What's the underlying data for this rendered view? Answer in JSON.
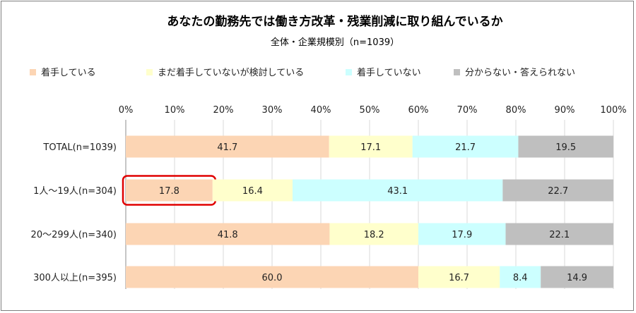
{
  "chart_data": {
    "type": "bar",
    "orientation": "horizontal",
    "stacked": true,
    "title": "あなたの勤務先では働き方改革・残業削減に取り組んでいるか",
    "subtitle": "全体・企業規模別（n=1039）",
    "categories": [
      "TOTAL(n=1039)",
      "1人～19人(n=304)",
      "20～299人(n=340)",
      "300人以上(n=395)"
    ],
    "series": [
      {
        "name": "着手している",
        "color": "#fcd5b4",
        "values": [
          41.7,
          17.8,
          41.8,
          60.0
        ],
        "labels": [
          "41.7",
          "17.8",
          "41.8",
          "60.0"
        ]
      },
      {
        "name": "まだ着手していないが検討している",
        "color": "#ffffcc",
        "values": [
          17.1,
          16.4,
          18.2,
          16.7
        ],
        "labels": [
          "17.1",
          "16.4",
          "18.2",
          "16.7"
        ]
      },
      {
        "name": "着手していない",
        "color": "#ccffff",
        "values": [
          21.7,
          43.1,
          17.9,
          8.4
        ],
        "labels": [
          "21.7",
          "43.1",
          "17.9",
          "8.4"
        ]
      },
      {
        "name": "分からない・答えられない",
        "color": "#bfbfbf",
        "values": [
          19.5,
          22.7,
          22.1,
          14.9
        ],
        "labels": [
          "19.5",
          "22.7",
          "22.1",
          "14.9"
        ]
      }
    ],
    "xlim": [
      0,
      100
    ],
    "xticks": [
      "0%",
      "10%",
      "20%",
      "30%",
      "40%",
      "50%",
      "60%",
      "70%",
      "80%",
      "90%",
      "100%"
    ],
    "grid": true,
    "legend_position": "top",
    "highlight": {
      "category_index": 1,
      "series_index": 0,
      "color": "#e00000"
    }
  }
}
